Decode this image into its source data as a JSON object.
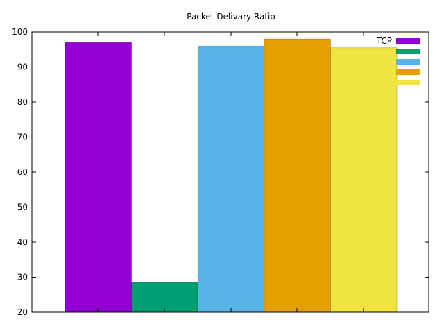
{
  "chart_data": {
    "type": "bar",
    "title": "Packet Delivary Ratio",
    "xlabel": "",
    "ylabel": "",
    "ylim": [
      20,
      100
    ],
    "yticks": [
      20,
      30,
      40,
      50,
      60,
      70,
      80,
      90,
      100
    ],
    "grid": false,
    "legend_position": "top-right",
    "series": [
      {
        "name": "TCP",
        "value": 97,
        "color": "#9400d3"
      },
      {
        "name": "",
        "value": 28.5,
        "color": "#009e73"
      },
      {
        "name": "",
        "value": 96,
        "color": "#56b4e9"
      },
      {
        "name": "",
        "value": 98,
        "color": "#e69f00"
      },
      {
        "name": "",
        "value": 95.5,
        "color": "#f0e442"
      }
    ]
  }
}
